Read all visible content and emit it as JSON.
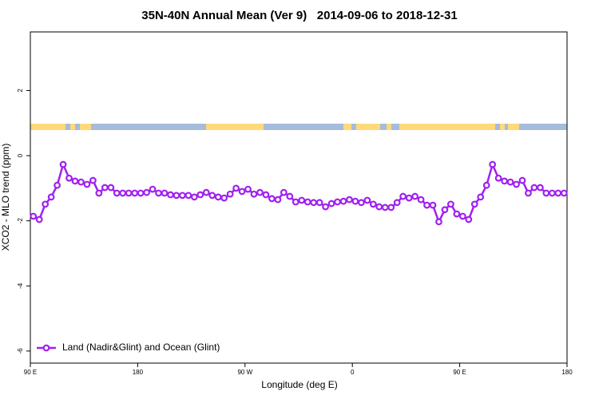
{
  "chart_data": {
    "type": "line",
    "title": "35N-40N Annual Mean (Ver 9)   2014-09-06 to 2018-12-31",
    "xlabel": "Longitude (deg E)",
    "ylabel": "XCO2 - MLO trend (ppm)",
    "x": [
      92.5,
      97.5,
      102.5,
      107.5,
      112.5,
      117.5,
      122.5,
      127.5,
      132.5,
      137.5,
      142.5,
      147.5,
      152.5,
      157.5,
      162.5,
      167.5,
      172.5,
      177.5,
      182.5,
      187.5,
      192.5,
      197.5,
      202.5,
      207.5,
      212.5,
      217.5,
      222.5,
      227.5,
      232.5,
      237.5,
      242.5,
      247.5,
      252.5,
      257.5,
      262.5,
      267.5,
      272.5,
      277.5,
      282.5,
      287.5,
      292.5,
      297.5,
      302.5,
      307.5,
      312.5,
      317.5,
      322.5,
      327.5,
      332.5,
      337.5,
      342.5,
      347.5,
      352.5,
      357.5,
      362.5,
      367.5,
      372.5,
      377.5,
      382.5,
      387.5,
      392.5,
      397.5,
      402.5,
      407.5,
      412.5,
      417.5,
      422.5,
      427.5,
      432.5,
      437.5,
      442.5,
      447.5,
      452.5,
      457.5,
      462.5,
      467.5,
      472.5,
      477.5,
      482.5,
      487.5,
      492.5,
      497.5,
      502.5,
      507.5,
      512.5,
      517.5,
      522.5,
      527.5,
      532.5,
      537.5
    ],
    "series": [
      {
        "name": "Land (Nadir&Glint) and Ocean (Glint)",
        "color": "#a020f0",
        "values": [
          -1.86,
          -1.96,
          -1.49,
          -1.27,
          -0.91,
          -0.27,
          -0.69,
          -0.78,
          -0.81,
          -0.88,
          -0.76,
          -1.15,
          -0.98,
          -0.98,
          -1.15,
          -1.15,
          -1.15,
          -1.15,
          -1.15,
          -1.13,
          -1.03,
          -1.15,
          -1.15,
          -1.2,
          -1.22,
          -1.22,
          -1.22,
          -1.27,
          -1.2,
          -1.13,
          -1.22,
          -1.27,
          -1.3,
          -1.18,
          -1.0,
          -1.1,
          -1.03,
          -1.18,
          -1.13,
          -1.2,
          -1.32,
          -1.35,
          -1.13,
          -1.25,
          -1.42,
          -1.37,
          -1.42,
          -1.44,
          -1.44,
          -1.57,
          -1.47,
          -1.42,
          -1.4,
          -1.35,
          -1.4,
          -1.44,
          -1.37,
          -1.49,
          -1.57,
          -1.59,
          -1.59,
          -1.44,
          -1.25,
          -1.3,
          -1.25,
          -1.35,
          -1.52,
          -1.52,
          -2.03,
          -1.66,
          -1.49,
          -1.79,
          -1.86,
          -1.96,
          -1.49,
          -1.27,
          -0.91,
          -0.27,
          -0.69,
          -0.78,
          -0.81,
          -0.88,
          -0.76,
          -1.15,
          -0.98,
          -0.98,
          -1.15,
          -1.15,
          -1.15,
          -1.15
        ]
      }
    ],
    "xlim": [
      90,
      540
    ],
    "xticks": [
      {
        "value": 90,
        "label": "90 E"
      },
      180,
      {
        "value": 270,
        "label": "90 W"
      },
      {
        "value": 360,
        "label": "0"
      },
      {
        "value": 450,
        "label": "90 E"
      },
      {
        "value": 540,
        "label": "180"
      }
    ],
    "ylim": [
      -6.37,
      3.8
    ],
    "yticks": [
      -6,
      -4,
      -2,
      0,
      2
    ],
    "legend": "bottom-left"
  }
}
